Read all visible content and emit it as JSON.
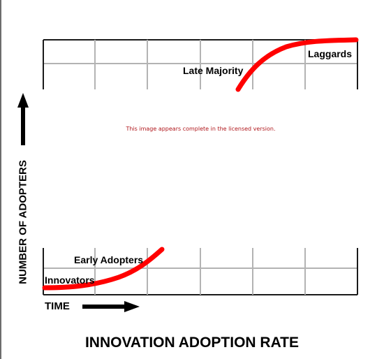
{
  "title": "INNOVATION ADOPTION RATE",
  "watermark": "This image appears complete in the licensed version.",
  "axes": {
    "x_label": "TIME",
    "y_label": "NUMBER OF ADOPTERS"
  },
  "curve_labels": {
    "innovators": "Innovators",
    "early_adopters": "Early Adopters",
    "late_majority": "Late Majority",
    "laggards": "Laggards"
  },
  "colors": {
    "curve": "#ff0000",
    "grid_light": "#b3b3b3",
    "grid_dark": "#1a1a1a",
    "watermark": "#b0171c"
  }
}
